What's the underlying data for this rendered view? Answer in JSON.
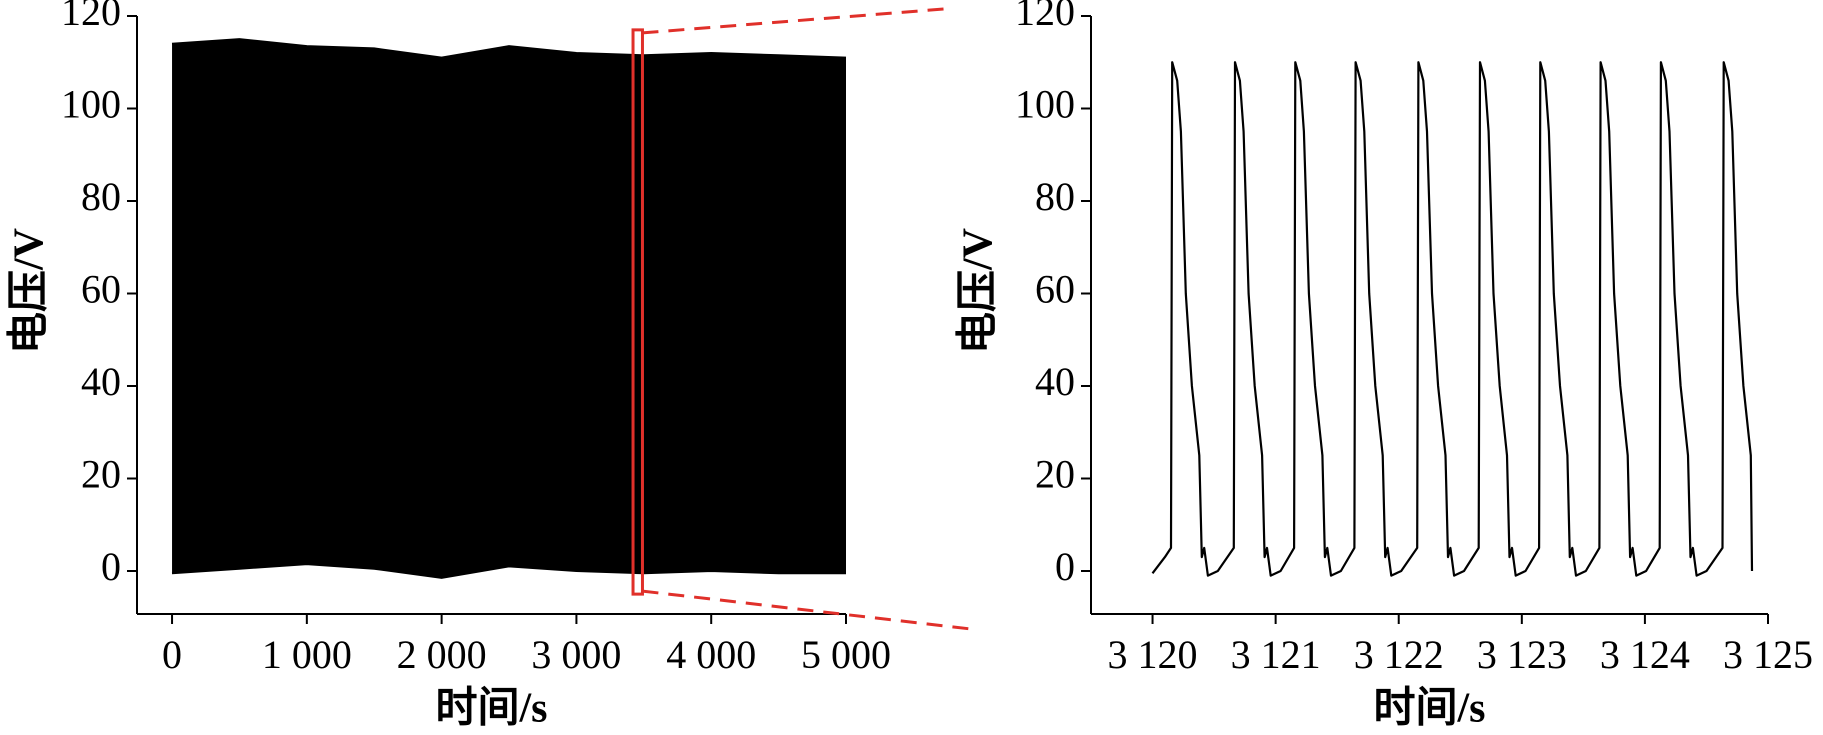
{
  "chart_data": [
    {
      "type": "band",
      "x": [
        0,
        500,
        1000,
        1500,
        2000,
        2500,
        3000,
        3500,
        4000,
        4500,
        5000
      ],
      "series": [
        {
          "color": "#000000",
          "values": [
            114,
            115,
            113.5,
            113,
            111,
            113.5,
            112,
            111.5,
            112,
            111.5,
            111
          ]
        },
        {
          "color": "#000000",
          "values": [
            -0.5,
            0.5,
            1.5,
            0.5,
            -1.5,
            1,
            0,
            -0.5,
            0,
            -0.5,
            -0.5
          ]
        }
      ],
      "xlabel": "时间/s",
      "ylabel": "电压/V",
      "xlim": [
        -260,
        5000
      ],
      "ylim": [
        -9.3,
        120
      ],
      "xticks": [
        0,
        {
          "value": 1000,
          "label": "1 000"
        },
        {
          "value": 2000,
          "label": "2 000"
        },
        {
          "value": 3000,
          "label": "3 000"
        },
        {
          "value": 4000,
          "label": "4 000"
        },
        {
          "value": 5000,
          "label": "5 000"
        }
      ],
      "yticks": [
        0,
        20,
        40,
        60,
        80,
        100,
        120
      ],
      "zoom_box": {
        "x": [
          3420,
          3490
        ],
        "y": [
          -5,
          117
        ],
        "color": "#e0302a"
      }
    },
    {
      "type": "line",
      "x": [
        3120.0,
        3120.1,
        3120.15,
        3120.16,
        3120.2,
        3120.23,
        3120.27,
        3120.32,
        3120.38,
        3120.4,
        3120.42,
        3120.45,
        3120.53,
        3120.66,
        3120.67,
        3120.71,
        3120.74,
        3120.78,
        3120.83,
        3120.89,
        3120.91,
        3120.93,
        3120.96,
        3121.04,
        3121.15,
        3121.16,
        3121.2,
        3121.23,
        3121.27,
        3121.32,
        3121.38,
        3121.4,
        3121.42,
        3121.45,
        3121.53,
        3121.64,
        3121.65,
        3121.69,
        3121.72,
        3121.76,
        3121.81,
        3121.87,
        3121.89,
        3121.91,
        3121.94,
        3122.02,
        3122.15,
        3122.16,
        3122.2,
        3122.23,
        3122.27,
        3122.32,
        3122.38,
        3122.4,
        3122.42,
        3122.45,
        3122.53,
        3122.65,
        3122.66,
        3122.7,
        3122.73,
        3122.77,
        3122.82,
        3122.88,
        3122.9,
        3122.92,
        3122.95,
        3123.03,
        3123.14,
        3123.15,
        3123.19,
        3123.22,
        3123.26,
        3123.31,
        3123.37,
        3123.39,
        3123.41,
        3123.44,
        3123.52,
        3123.63,
        3123.64,
        3123.68,
        3123.71,
        3123.75,
        3123.8,
        3123.86,
        3123.88,
        3123.9,
        3123.93,
        3124.01,
        3124.12,
        3124.13,
        3124.17,
        3124.2,
        3124.24,
        3124.29,
        3124.35,
        3124.37,
        3124.39,
        3124.42,
        3124.5,
        3124.63,
        3124.64,
        3124.68,
        3124.71,
        3124.75,
        3124.8,
        3124.86,
        3124.87
      ],
      "series": [
        {
          "color": "#000000",
          "values": [
            -0.5,
            3,
            5,
            110,
            106,
            95,
            60,
            40,
            25,
            3,
            5,
            -1,
            0,
            5,
            110,
            106,
            95,
            60,
            40,
            25,
            3,
            5,
            -1,
            0,
            5,
            110,
            106,
            95,
            60,
            40,
            25,
            3,
            5,
            -1,
            0,
            5,
            110,
            106,
            95,
            60,
            40,
            25,
            3,
            5,
            -1,
            0,
            5,
            110,
            106,
            95,
            60,
            40,
            25,
            3,
            5,
            -1,
            0,
            5,
            110,
            106,
            95,
            60,
            40,
            25,
            3,
            5,
            -1,
            0,
            5,
            110,
            106,
            95,
            60,
            40,
            25,
            3,
            5,
            -1,
            0,
            5,
            110,
            106,
            95,
            60,
            40,
            25,
            3,
            5,
            -1,
            0,
            5,
            110,
            106,
            95,
            60,
            40,
            25,
            3,
            5,
            -1,
            0,
            5,
            110,
            106,
            95,
            60,
            40,
            25,
            0
          ]
        }
      ],
      "xlabel": "时间/s",
      "ylabel": "电压/V",
      "xlim": [
        3119.5,
        3125
      ],
      "ylim": [
        -9.3,
        120
      ],
      "xticks": [
        {
          "value": 3120,
          "label": "3 120"
        },
        {
          "value": 3121,
          "label": "3 121"
        },
        {
          "value": 3122,
          "label": "3 122"
        },
        {
          "value": 3123,
          "label": "3 123"
        },
        {
          "value": 3124,
          "label": "3 124"
        },
        {
          "value": 3125,
          "label": "3 125"
        }
      ],
      "yticks": [
        0,
        20,
        40,
        60,
        80,
        100,
        120
      ]
    }
  ]
}
